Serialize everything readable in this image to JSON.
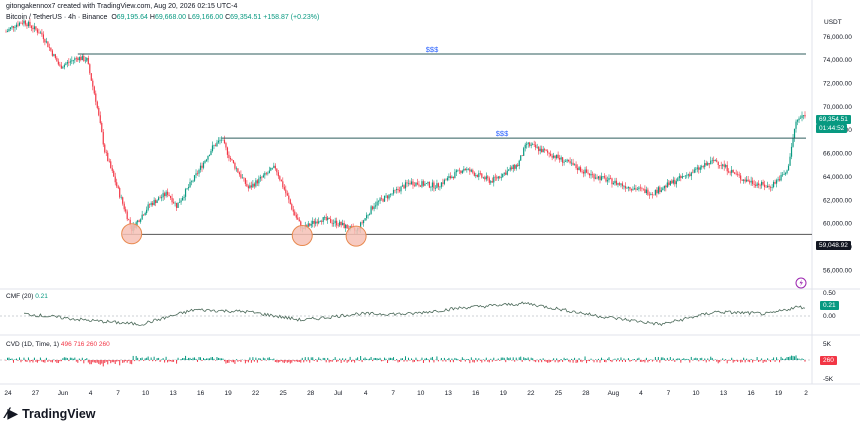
{
  "header": {
    "credit": "gitongakennox7 created with TradingView.com, Aug 20, 2026 02:15 UTC-4",
    "symbol": "Bitcoin / TetherUS · 4h · Binance",
    "o_label": "O",
    "o_value": "69,195.64",
    "h_label": "H",
    "h_value": "69,668.00",
    "l_label": "L",
    "l_value": "69,166.00",
    "c_label": "C",
    "c_value": "69,354.51",
    "change": "+158.87 (+0.23%)"
  },
  "price_scale": {
    "currency": "USDT",
    "ticks": [
      "76,000.00",
      "74,000.00",
      "72,000.00",
      "70,000.00",
      "68,000.00",
      "66,000.00",
      "64,000.00",
      "62,000.00",
      "60,000.00",
      "58,000.00",
      "56,000.00"
    ],
    "last_price": "69,354.51",
    "countdown": "01:44:52",
    "support_label": "59,048.92"
  },
  "cmf": {
    "title": "CMF (20)",
    "value": "0.21",
    "ticks": [
      "0.50",
      "0.00"
    ],
    "badge": "0.21"
  },
  "cvd": {
    "title": "CVD (1D, Time, 1)",
    "v1": "496",
    "v2": "716",
    "v3": "260",
    "v4": "260",
    "ticks": [
      "5K",
      "-5K"
    ],
    "badge": "260"
  },
  "time_axis": [
    "24",
    "27",
    "Jun",
    "4",
    "7",
    "10",
    "13",
    "16",
    "19",
    "22",
    "25",
    "28",
    "Jul",
    "4",
    "7",
    "10",
    "13",
    "16",
    "19",
    "22",
    "25",
    "28",
    "Aug",
    "4",
    "7",
    "10",
    "13",
    "16",
    "19",
    "2"
  ],
  "annotations": {
    "liquidity_top": "$$$",
    "liquidity_mid": "$$$"
  },
  "brand": {
    "name": "TradingView"
  },
  "colors": {
    "up": "#089981",
    "down": "#f23645",
    "resistance": "#2f5d5d",
    "support": "#555555",
    "circle_fill": "#f6c1b6",
    "circle_stroke": "#e8894e",
    "label_blue": "#2962ff"
  },
  "chart_data": {
    "type": "candlestick",
    "symbol": "BTC/USDT",
    "timeframe": "4h",
    "ylim": [
      56000,
      77500
    ],
    "levels": [
      {
        "name": "$$$",
        "price": 74500
      },
      {
        "name": "$$$",
        "price": 67300
      },
      {
        "name": "support",
        "price": 59048.92
      }
    ],
    "swing_lows_circled": [
      {
        "date": "Jun 6",
        "price": 59100
      },
      {
        "date": "Jun 25",
        "price": 58950
      },
      {
        "date": "Jul 1",
        "price": 58900
      }
    ],
    "price_path": [
      {
        "date": "May 23",
        "price": 76400
      },
      {
        "date": "May 24",
        "price": 77000
      },
      {
        "date": "May 25",
        "price": 77300
      },
      {
        "date": "May 27",
        "price": 76200
      },
      {
        "date": "May 29",
        "price": 73400
      },
      {
        "date": "May 31",
        "price": 74200
      },
      {
        "date": "Jun 1",
        "price": 74000
      },
      {
        "date": "Jun 2",
        "price": 70600
      },
      {
        "date": "Jun 3",
        "price": 66200
      },
      {
        "date": "Jun 5",
        "price": 61700
      },
      {
        "date": "Jun 6",
        "price": 59500
      },
      {
        "date": "Jun 8",
        "price": 61600
      },
      {
        "date": "Jun 10",
        "price": 62600
      },
      {
        "date": "Jun 11",
        "price": 61500
      },
      {
        "date": "Jun 13",
        "price": 63900
      },
      {
        "date": "Jun 15",
        "price": 66500
      },
      {
        "date": "Jun 16",
        "price": 67200
      },
      {
        "date": "Jun 17",
        "price": 65500
      },
      {
        "date": "Jun 19",
        "price": 63000
      },
      {
        "date": "Jun 22",
        "price": 64800
      },
      {
        "date": "Jun 24",
        "price": 61000
      },
      {
        "date": "Jun 25",
        "price": 59500
      },
      {
        "date": "Jun 27",
        "price": 60400
      },
      {
        "date": "Jun 29",
        "price": 60000
      },
      {
        "date": "Jul 1",
        "price": 59300
      },
      {
        "date": "Jul 3",
        "price": 61600
      },
      {
        "date": "Jul 7",
        "price": 63500
      },
      {
        "date": "Jul 10",
        "price": 63200
      },
      {
        "date": "Jul 13",
        "price": 64700
      },
      {
        "date": "Jul 16",
        "price": 63600
      },
      {
        "date": "Jul 19",
        "price": 65000
      },
      {
        "date": "Jul 20",
        "price": 66800
      },
      {
        "date": "Jul 23",
        "price": 65800
      },
      {
        "date": "Jul 27",
        "price": 64200
      },
      {
        "date": "Jul 31",
        "price": 63200
      },
      {
        "date": "Aug 3",
        "price": 62600
      },
      {
        "date": "Aug 7",
        "price": 64200
      },
      {
        "date": "Aug 10",
        "price": 65400
      },
      {
        "date": "Aug 13",
        "price": 63800
      },
      {
        "date": "Aug 16",
        "price": 63100
      },
      {
        "date": "Aug 18",
        "price": 64400
      },
      {
        "date": "Aug 19",
        "price": 68700
      },
      {
        "date": "Aug 20",
        "price": 69354.51
      }
    ],
    "cmf": [
      {
        "date": "May 25",
        "value": 0.05
      },
      {
        "date": "Jun 1",
        "value": -0.1
      },
      {
        "date": "Jun 7",
        "value": -0.2
      },
      {
        "date": "Jun 13",
        "value": 0.15
      },
      {
        "date": "Jun 19",
        "value": 0.1
      },
      {
        "date": "Jun 25",
        "value": -0.1
      },
      {
        "date": "Jul 1",
        "value": 0.05
      },
      {
        "date": "Jul 7",
        "value": 0.05
      },
      {
        "date": "Jul 13",
        "value": 0.2
      },
      {
        "date": "Jul 20",
        "value": 0.3
      },
      {
        "date": "Jul 28",
        "value": 0.0
      },
      {
        "date": "Aug 4",
        "value": -0.2
      },
      {
        "date": "Aug 10",
        "value": 0.1
      },
      {
        "date": "Aug 16",
        "value": 0.05
      },
      {
        "date": "Aug 19",
        "value": 0.21
      }
    ]
  }
}
